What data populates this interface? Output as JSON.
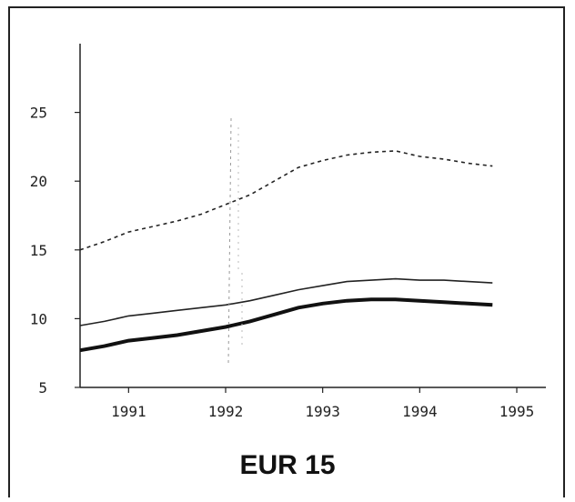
{
  "chart_data": {
    "type": "line",
    "title": "EUR 15",
    "xlabel": "",
    "ylabel": "",
    "x_ticks": [
      "1991",
      "1992",
      "1993",
      "1994",
      "1995"
    ],
    "x_tick_values": [
      1991,
      1992,
      1993,
      1994,
      1995
    ],
    "y_ticks": [
      5,
      10,
      15,
      20,
      25
    ],
    "xlim": [
      1990.5,
      1995.3
    ],
    "ylim": [
      5,
      30
    ],
    "grid": false,
    "legend": "none",
    "series": [
      {
        "style": "dashed",
        "color": "#222222",
        "x": [
          1990.5,
          1990.75,
          1991.0,
          1991.25,
          1991.5,
          1991.75,
          1992.0,
          1992.25,
          1992.5,
          1992.75,
          1993.0,
          1993.25,
          1993.5,
          1993.75,
          1994.0,
          1994.25,
          1994.5,
          1994.75
        ],
        "values": [
          15.0,
          15.6,
          16.3,
          16.7,
          17.1,
          17.6,
          18.3,
          19.0,
          20.0,
          21.0,
          21.5,
          21.9,
          22.1,
          22.2,
          21.8,
          21.6,
          21.3,
          21.1
        ]
      },
      {
        "style": "solid-thin",
        "color": "#222222",
        "x": [
          1990.5,
          1990.75,
          1991.0,
          1991.25,
          1991.5,
          1991.75,
          1992.0,
          1992.25,
          1992.5,
          1992.75,
          1993.0,
          1993.25,
          1993.5,
          1993.75,
          1994.0,
          1994.25,
          1994.5,
          1994.75
        ],
        "values": [
          9.5,
          9.8,
          10.2,
          10.4,
          10.6,
          10.8,
          11.0,
          11.3,
          11.7,
          12.1,
          12.4,
          12.7,
          12.8,
          12.9,
          12.8,
          12.8,
          12.7,
          12.6
        ]
      },
      {
        "style": "solid-thick",
        "color": "#111111",
        "x": [
          1990.5,
          1990.75,
          1991.0,
          1991.25,
          1991.5,
          1991.75,
          1992.0,
          1992.25,
          1992.5,
          1992.75,
          1993.0,
          1993.25,
          1993.5,
          1993.75,
          1994.0,
          1994.25,
          1994.5,
          1994.75
        ],
        "values": [
          7.7,
          8.0,
          8.4,
          8.6,
          8.8,
          9.1,
          9.4,
          9.8,
          10.3,
          10.8,
          11.1,
          11.3,
          11.4,
          11.4,
          11.3,
          11.2,
          11.1,
          11.0
        ]
      }
    ]
  }
}
